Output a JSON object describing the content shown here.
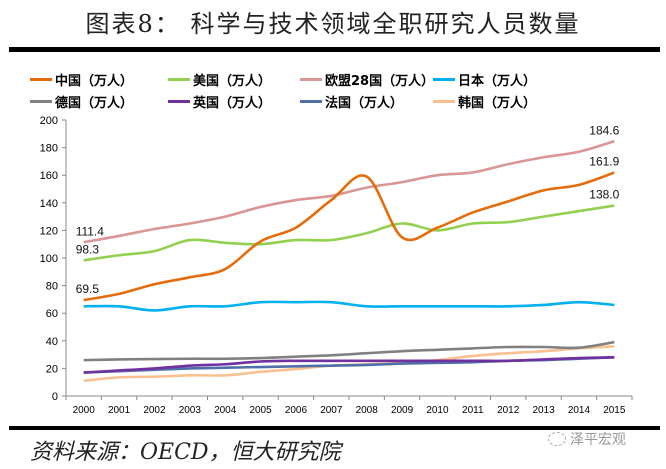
{
  "title": "图表8：  科学与技术领域全职研究人员数量",
  "footer": {
    "source": "资料来源：OECD，恒大研究院",
    "watermark": "泽平宏观"
  },
  "chart_data": {
    "type": "line",
    "title": "科学与技术领域全职研究人员数量",
    "xlabel": "",
    "ylabel": "",
    "ylim": [
      0,
      200
    ],
    "yticks": [
      0,
      20,
      40,
      60,
      80,
      100,
      120,
      140,
      160,
      180,
      200
    ],
    "x": [
      2000,
      2001,
      2002,
      2003,
      2004,
      2005,
      2006,
      2007,
      2008,
      2009,
      2010,
      2011,
      2012,
      2013,
      2014,
      2015
    ],
    "legend_position": "top",
    "series": [
      {
        "name": "中国（万人）",
        "color": "#E46C0A",
        "values": [
          69.5,
          74,
          81,
          86,
          92,
          112,
          122,
          142,
          159,
          115,
          122,
          133,
          141,
          149,
          153,
          161.9
        ],
        "labels": {
          "0": "69.5",
          "15": "161.9"
        }
      },
      {
        "name": "美国（万人）",
        "color": "#92D050",
        "values": [
          98.3,
          102,
          105,
          113,
          111,
          110,
          113,
          113,
          118,
          125,
          120,
          125,
          126,
          130,
          134,
          138.0
        ],
        "labels": {
          "0": "98.3",
          "15": "138.0"
        }
      },
      {
        "name": "欧盟28国（万人）",
        "color": "#D99694",
        "values": [
          111.4,
          116,
          121,
          125,
          130,
          137,
          142,
          145,
          151,
          155,
          160,
          162,
          168,
          173,
          177,
          184.6
        ],
        "labels": {
          "0": "111.4",
          "15": "184.6"
        }
      },
      {
        "name": "日本（万人）",
        "color": "#00B0F0",
        "values": [
          65,
          65,
          62,
          65,
          65,
          68,
          68,
          68,
          65,
          65,
          65,
          65,
          65,
          66,
          68,
          66
        ]
      },
      {
        "name": "德国（万人）",
        "color": "#808080",
        "values": [
          26,
          26.5,
          26.8,
          27,
          27,
          27.5,
          28.5,
          29.5,
          31,
          32.5,
          33.5,
          34.5,
          35.5,
          35.5,
          35,
          39
        ]
      },
      {
        "name": "英国（万人）",
        "color": "#7030A0",
        "values": [
          17,
          18.5,
          20,
          22,
          23,
          25,
          25.5,
          25.5,
          25.5,
          25.5,
          25.5,
          25.5,
          25.5,
          26.5,
          27.5,
          28
        ]
      },
      {
        "name": "法国（万人）",
        "color": "#4F6FA8",
        "values": [
          17,
          18,
          19,
          20,
          20.5,
          21,
          21.5,
          22,
          22.5,
          23.5,
          24,
          24.5,
          25.5,
          26,
          27,
          28
        ]
      },
      {
        "name": "韩国（万人）",
        "color": "#FAC090",
        "values": [
          11,
          13.5,
          14,
          15,
          15,
          17.5,
          19.5,
          22,
          23,
          24,
          26,
          29,
          31,
          32.5,
          34.5,
          36
        ]
      }
    ]
  }
}
